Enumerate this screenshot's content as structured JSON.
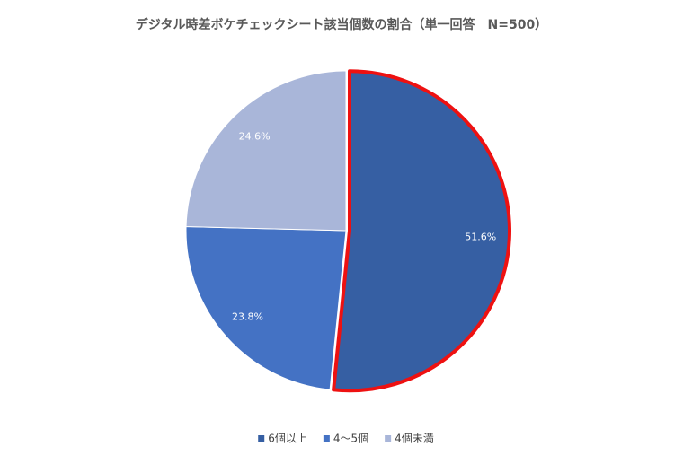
{
  "chart_data": {
    "type": "pie",
    "title": "デジタル時差ボケチェックシート該当個数の割合（単一回答　N=500）",
    "categories": [
      "6個以上",
      "4～5個",
      "4個未満"
    ],
    "values": [
      51.6,
      23.8,
      24.6
    ],
    "value_labels": [
      "51.6%",
      "23.8%",
      "24.6%"
    ],
    "colors": [
      "#365fa3",
      "#4472c4",
      "#a9b6d9"
    ],
    "highlight_index": 0,
    "highlight_color": "#ee1111",
    "legend": "bottom"
  }
}
